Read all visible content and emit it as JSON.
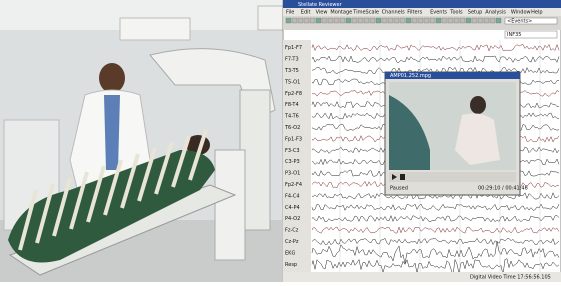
{
  "window": {
    "title": "Stellate Reviewer",
    "menu": [
      "File",
      "Edit",
      "View",
      "Montage",
      "TimeScale",
      "Channels",
      "Filters",
      "Events",
      "Tools",
      "Setup",
      "Analysis",
      "Window",
      "Help"
    ],
    "search": "<Events>",
    "field": "INF35"
  },
  "channels": [
    "Fp1-F7",
    "F7-T3",
    "T3-T5",
    "T5-O1",
    "Fp2-F8",
    "F8-T4",
    "T4-T6",
    "T6-O2",
    "Fp1-F3",
    "F3-C3",
    "C3-P3",
    "P3-O1",
    "Fp2-F4",
    "F4-C4",
    "C4-P4",
    "P4-O2",
    "Fz-Cz",
    "Cz-Pz",
    "EKG",
    "Resp"
  ],
  "video": {
    "title": "AMP01.252.mpg",
    "status": "Paused",
    "time": "00:29:10 / 00:41:46"
  },
  "status": "Digital Video Time 17:56:56.105"
}
